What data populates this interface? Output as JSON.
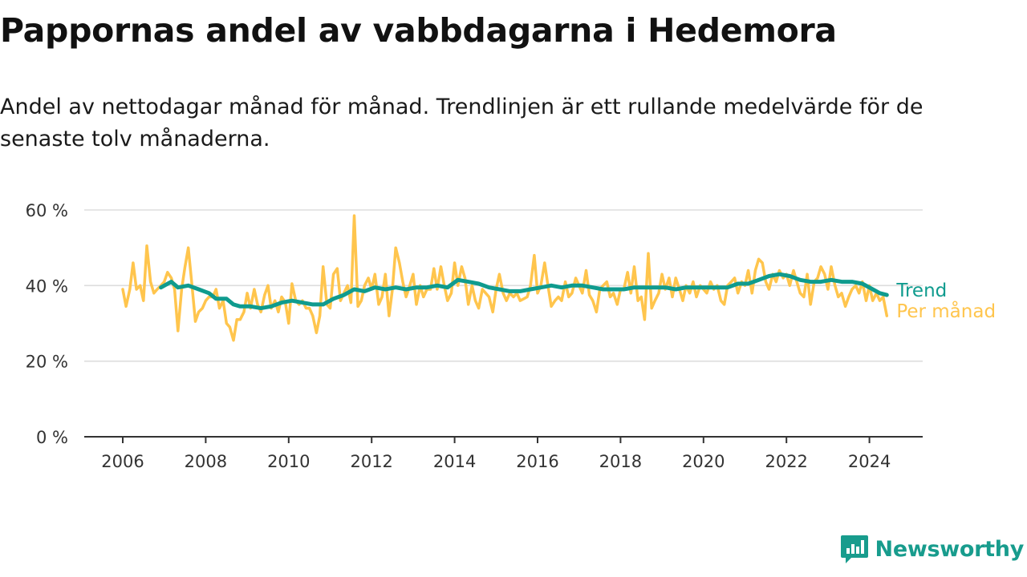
{
  "header": {
    "title": "Pappornas andel av vabbdagarna i Hedemora",
    "subtitle": "Andel av nettodagar månad för månad. Trendlinjen är ett rullande medelvärde för de senaste tolv månaderna."
  },
  "brand": {
    "name": "Newsworthy",
    "icon": "newsworthy-logo-icon"
  },
  "colors": {
    "trend": "#0f9b8e",
    "monthly": "#ffc54d",
    "grid": "#dddddd",
    "axis": "#333333",
    "text": "#333333"
  },
  "chart_data": {
    "type": "line",
    "ylim": [
      0,
      60
    ],
    "xlim": [
      2006,
      2024.6
    ],
    "grid": true,
    "y_ticks": [
      {
        "value": 0,
        "label": "0 %"
      },
      {
        "value": 20,
        "label": "20 %"
      },
      {
        "value": 40,
        "label": "40 %"
      },
      {
        "value": 60,
        "label": "60 %"
      }
    ],
    "x_ticks": [
      "2006",
      "2008",
      "2010",
      "2012",
      "2014",
      "2016",
      "2018",
      "2020",
      "2022",
      "2024"
    ],
    "series": [
      {
        "name": "Per månad",
        "color": "#ffc54d",
        "points": [
          [
            2006.0,
            39
          ],
          [
            2006.08,
            34.5
          ],
          [
            2006.17,
            39
          ],
          [
            2006.25,
            46
          ],
          [
            2006.33,
            39
          ],
          [
            2006.42,
            40
          ],
          [
            2006.5,
            36
          ],
          [
            2006.58,
            50.5
          ],
          [
            2006.67,
            41
          ],
          [
            2006.75,
            38
          ],
          [
            2006.83,
            39
          ],
          [
            2006.92,
            40
          ],
          [
            2007.0,
            41
          ],
          [
            2007.08,
            43.5
          ],
          [
            2007.17,
            42
          ],
          [
            2007.25,
            39
          ],
          [
            2007.33,
            28
          ],
          [
            2007.42,
            39
          ],
          [
            2007.5,
            45
          ],
          [
            2007.58,
            50
          ],
          [
            2007.67,
            40
          ],
          [
            2007.75,
            30.5
          ],
          [
            2007.83,
            33
          ],
          [
            2007.92,
            34
          ],
          [
            2008.0,
            36
          ],
          [
            2008.08,
            37
          ],
          [
            2008.17,
            37
          ],
          [
            2008.25,
            39
          ],
          [
            2008.33,
            34
          ],
          [
            2008.42,
            36
          ],
          [
            2008.5,
            30
          ],
          [
            2008.58,
            29
          ],
          [
            2008.67,
            25.5
          ],
          [
            2008.75,
            31
          ],
          [
            2008.83,
            31
          ],
          [
            2008.92,
            33
          ],
          [
            2009.0,
            38
          ],
          [
            2009.08,
            34
          ],
          [
            2009.17,
            39
          ],
          [
            2009.25,
            35
          ],
          [
            2009.33,
            33
          ],
          [
            2009.42,
            37.5
          ],
          [
            2009.5,
            40
          ],
          [
            2009.58,
            34
          ],
          [
            2009.67,
            36
          ],
          [
            2009.75,
            33
          ],
          [
            2009.83,
            37
          ],
          [
            2009.92,
            35.5
          ],
          [
            2010.0,
            30
          ],
          [
            2010.08,
            40.5
          ],
          [
            2010.17,
            36
          ],
          [
            2010.25,
            35
          ],
          [
            2010.33,
            36
          ],
          [
            2010.42,
            34
          ],
          [
            2010.5,
            34
          ],
          [
            2010.58,
            32
          ],
          [
            2010.67,
            27.5
          ],
          [
            2010.75,
            32
          ],
          [
            2010.83,
            45
          ],
          [
            2010.92,
            35
          ],
          [
            2011.0,
            34
          ],
          [
            2011.08,
            43
          ],
          [
            2011.17,
            44.5
          ],
          [
            2011.25,
            36
          ],
          [
            2011.33,
            38
          ],
          [
            2011.42,
            40
          ],
          [
            2011.5,
            35.5
          ],
          [
            2011.58,
            58.5
          ],
          [
            2011.67,
            34.5
          ],
          [
            2011.75,
            36
          ],
          [
            2011.83,
            40
          ],
          [
            2011.92,
            42
          ],
          [
            2012.0,
            39
          ],
          [
            2012.08,
            43
          ],
          [
            2012.17,
            35
          ],
          [
            2012.25,
            37
          ],
          [
            2012.33,
            43
          ],
          [
            2012.42,
            32
          ],
          [
            2012.5,
            39
          ],
          [
            2012.58,
            50
          ],
          [
            2012.67,
            46
          ],
          [
            2012.75,
            41
          ],
          [
            2012.83,
            37
          ],
          [
            2012.92,
            40
          ],
          [
            2013.0,
            43
          ],
          [
            2013.08,
            35
          ],
          [
            2013.17,
            40
          ],
          [
            2013.25,
            37
          ],
          [
            2013.33,
            39
          ],
          [
            2013.42,
            39
          ],
          [
            2013.5,
            44.5
          ],
          [
            2013.58,
            39
          ],
          [
            2013.67,
            45
          ],
          [
            2013.75,
            40
          ],
          [
            2013.83,
            36
          ],
          [
            2013.92,
            38
          ],
          [
            2014.0,
            46
          ],
          [
            2014.08,
            40
          ],
          [
            2014.17,
            45
          ],
          [
            2014.25,
            42
          ],
          [
            2014.33,
            35
          ],
          [
            2014.42,
            40
          ],
          [
            2014.5,
            36
          ],
          [
            2014.58,
            34
          ],
          [
            2014.67,
            39
          ],
          [
            2014.75,
            38
          ],
          [
            2014.83,
            37
          ],
          [
            2014.92,
            33
          ],
          [
            2015.0,
            39
          ],
          [
            2015.08,
            43
          ],
          [
            2015.17,
            38
          ],
          [
            2015.25,
            36
          ],
          [
            2015.33,
            38
          ],
          [
            2015.42,
            37
          ],
          [
            2015.5,
            38
          ],
          [
            2015.58,
            36
          ],
          [
            2015.67,
            36.5
          ],
          [
            2015.75,
            37
          ],
          [
            2015.83,
            40
          ],
          [
            2015.92,
            48
          ],
          [
            2016.0,
            38
          ],
          [
            2016.08,
            40
          ],
          [
            2016.17,
            46
          ],
          [
            2016.25,
            40
          ],
          [
            2016.33,
            34.5
          ],
          [
            2016.42,
            36
          ],
          [
            2016.5,
            37
          ],
          [
            2016.58,
            36
          ],
          [
            2016.67,
            41
          ],
          [
            2016.75,
            37
          ],
          [
            2016.83,
            38
          ],
          [
            2016.92,
            42
          ],
          [
            2017.0,
            40
          ],
          [
            2017.08,
            38
          ],
          [
            2017.17,
            44
          ],
          [
            2017.25,
            37.5
          ],
          [
            2017.33,
            36
          ],
          [
            2017.42,
            33
          ],
          [
            2017.5,
            39
          ],
          [
            2017.58,
            40
          ],
          [
            2017.67,
            41
          ],
          [
            2017.75,
            37
          ],
          [
            2017.83,
            38
          ],
          [
            2017.92,
            35
          ],
          [
            2018.0,
            39
          ],
          [
            2018.08,
            39
          ],
          [
            2018.17,
            43.5
          ],
          [
            2018.25,
            38
          ],
          [
            2018.33,
            45
          ],
          [
            2018.42,
            36
          ],
          [
            2018.5,
            37
          ],
          [
            2018.58,
            31
          ],
          [
            2018.67,
            48.5
          ],
          [
            2018.75,
            34
          ],
          [
            2018.83,
            36
          ],
          [
            2018.92,
            38
          ],
          [
            2019.0,
            43
          ],
          [
            2019.08,
            39
          ],
          [
            2019.17,
            42
          ],
          [
            2019.25,
            37
          ],
          [
            2019.33,
            42
          ],
          [
            2019.42,
            39
          ],
          [
            2019.5,
            36
          ],
          [
            2019.58,
            40
          ],
          [
            2019.67,
            38
          ],
          [
            2019.75,
            41
          ],
          [
            2019.83,
            37
          ],
          [
            2019.92,
            40
          ],
          [
            2020.0,
            39
          ],
          [
            2020.08,
            38
          ],
          [
            2020.17,
            41
          ],
          [
            2020.25,
            39
          ],
          [
            2020.33,
            40
          ],
          [
            2020.42,
            36
          ],
          [
            2020.5,
            35
          ],
          [
            2020.58,
            40
          ],
          [
            2020.67,
            41
          ],
          [
            2020.75,
            42
          ],
          [
            2020.83,
            38
          ],
          [
            2020.92,
            41
          ],
          [
            2021.0,
            40
          ],
          [
            2021.08,
            44
          ],
          [
            2021.17,
            38
          ],
          [
            2021.25,
            44
          ],
          [
            2021.33,
            47
          ],
          [
            2021.42,
            46
          ],
          [
            2021.5,
            41
          ],
          [
            2021.58,
            39
          ],
          [
            2021.67,
            43
          ],
          [
            2021.75,
            41
          ],
          [
            2021.83,
            44
          ],
          [
            2021.92,
            42
          ],
          [
            2022.0,
            43
          ],
          [
            2022.08,
            40
          ],
          [
            2022.17,
            44
          ],
          [
            2022.25,
            41
          ],
          [
            2022.33,
            38
          ],
          [
            2022.42,
            37
          ],
          [
            2022.5,
            43
          ],
          [
            2022.58,
            35
          ],
          [
            2022.67,
            41
          ],
          [
            2022.75,
            42
          ],
          [
            2022.83,
            45
          ],
          [
            2022.92,
            43
          ],
          [
            2023.0,
            39
          ],
          [
            2023.08,
            45
          ],
          [
            2023.17,
            40
          ],
          [
            2023.25,
            37
          ],
          [
            2023.33,
            38
          ],
          [
            2023.42,
            34.5
          ],
          [
            2023.5,
            37
          ],
          [
            2023.58,
            39
          ],
          [
            2023.67,
            40
          ],
          [
            2023.75,
            38
          ],
          [
            2023.83,
            41
          ],
          [
            2023.92,
            36
          ],
          [
            2024.0,
            40
          ],
          [
            2024.08,
            36
          ],
          [
            2024.17,
            38
          ],
          [
            2024.25,
            36
          ],
          [
            2024.33,
            37
          ],
          [
            2024.42,
            32
          ]
        ]
      },
      {
        "name": "Trend",
        "color": "#0f9b8e",
        "points": [
          [
            2006.92,
            39.5
          ],
          [
            2007.17,
            41
          ],
          [
            2007.33,
            39.5
          ],
          [
            2007.58,
            40
          ],
          [
            2007.83,
            39
          ],
          [
            2008.08,
            38
          ],
          [
            2008.25,
            36.5
          ],
          [
            2008.5,
            36.5
          ],
          [
            2008.67,
            35
          ],
          [
            2008.83,
            34.5
          ],
          [
            2009.08,
            34.5
          ],
          [
            2009.33,
            34
          ],
          [
            2009.58,
            34.5
          ],
          [
            2009.83,
            35.5
          ],
          [
            2010.08,
            36
          ],
          [
            2010.33,
            35.5
          ],
          [
            2010.58,
            35
          ],
          [
            2010.83,
            35
          ],
          [
            2011.08,
            36.5
          ],
          [
            2011.33,
            37.5
          ],
          [
            2011.58,
            39
          ],
          [
            2011.83,
            38.5
          ],
          [
            2012.08,
            39.5
          ],
          [
            2012.33,
            39
          ],
          [
            2012.58,
            39.5
          ],
          [
            2012.83,
            39
          ],
          [
            2013.08,
            39.5
          ],
          [
            2013.33,
            39.5
          ],
          [
            2013.58,
            40
          ],
          [
            2013.83,
            39.5
          ],
          [
            2014.08,
            41.5
          ],
          [
            2014.33,
            41
          ],
          [
            2014.58,
            40.5
          ],
          [
            2014.83,
            39.5
          ],
          [
            2015.08,
            39
          ],
          [
            2015.33,
            38.5
          ],
          [
            2015.58,
            38.5
          ],
          [
            2015.83,
            39
          ],
          [
            2016.08,
            39.5
          ],
          [
            2016.33,
            40
          ],
          [
            2016.58,
            39.5
          ],
          [
            2016.83,
            40
          ],
          [
            2017.08,
            40
          ],
          [
            2017.33,
            39.5
          ],
          [
            2017.58,
            39
          ],
          [
            2017.83,
            39
          ],
          [
            2018.08,
            39
          ],
          [
            2018.33,
            39.5
          ],
          [
            2018.58,
            39.5
          ],
          [
            2018.83,
            39.5
          ],
          [
            2019.08,
            39.5
          ],
          [
            2019.33,
            39
          ],
          [
            2019.58,
            39.5
          ],
          [
            2019.83,
            39.5
          ],
          [
            2020.08,
            39.5
          ],
          [
            2020.33,
            39.5
          ],
          [
            2020.58,
            39.5
          ],
          [
            2020.83,
            40.5
          ],
          [
            2021.08,
            40.5
          ],
          [
            2021.33,
            41.5
          ],
          [
            2021.58,
            42.5
          ],
          [
            2021.83,
            43
          ],
          [
            2022.08,
            42.5
          ],
          [
            2022.33,
            41.5
          ],
          [
            2022.58,
            41
          ],
          [
            2022.83,
            41
          ],
          [
            2023.08,
            41.5
          ],
          [
            2023.33,
            41
          ],
          [
            2023.58,
            41
          ],
          [
            2023.83,
            40.5
          ],
          [
            2024.08,
            39
          ],
          [
            2024.25,
            38
          ],
          [
            2024.42,
            37.5
          ]
        ]
      }
    ]
  }
}
